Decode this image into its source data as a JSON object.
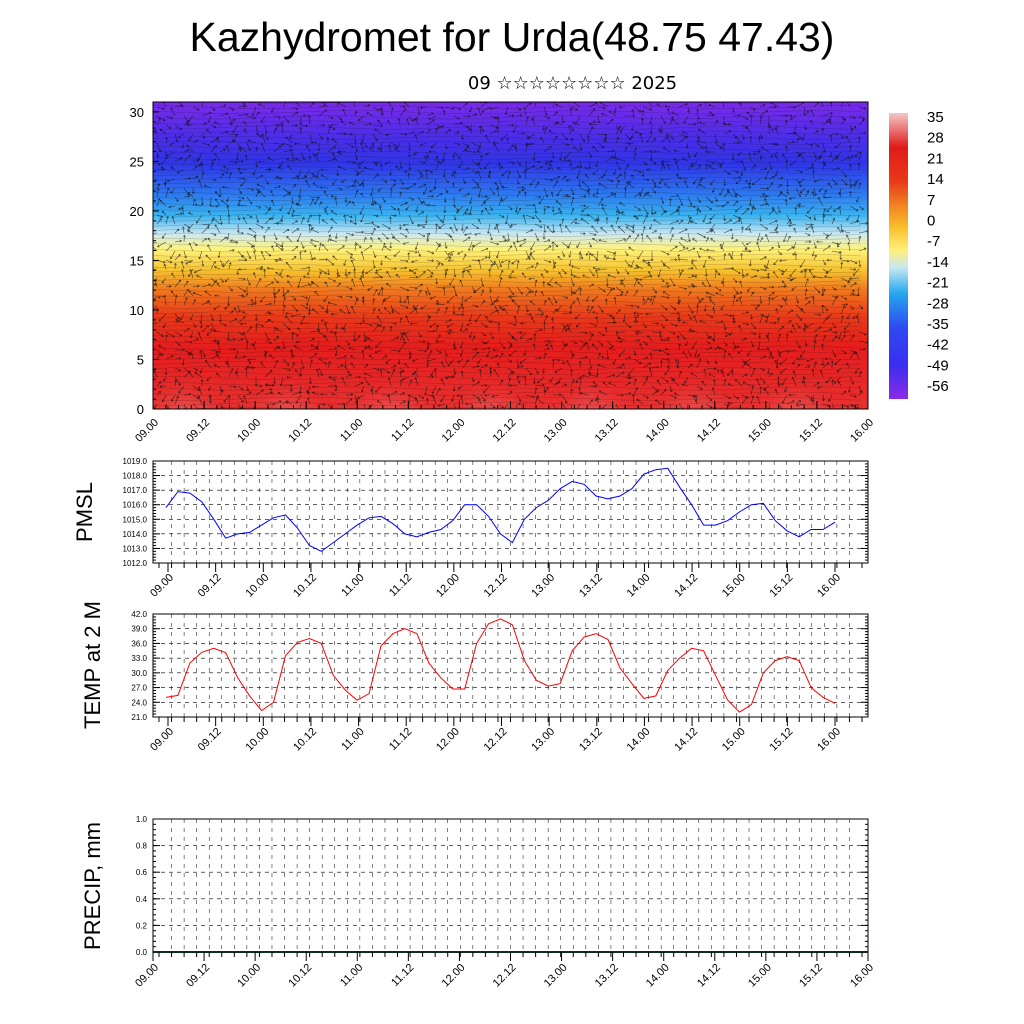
{
  "header": {
    "title": "Kazhydromet for Urda(48.75 47.43)",
    "subtitle": "09 ☆☆☆☆☆☆☆☆ 2025"
  },
  "time_labels": [
    "09.00",
    "09.12",
    "10.00",
    "10.12",
    "11.00",
    "11.12",
    "12.00",
    "12.12",
    "13.00",
    "13.12",
    "14.00",
    "14.12",
    "15.00",
    "15.12",
    "16.00"
  ],
  "chart_data": [
    {
      "type": "heatmap",
      "id": "cross-section",
      "x": [
        "09.00",
        "09.12",
        "10.00",
        "10.12",
        "11.00",
        "11.12",
        "12.00",
        "12.12",
        "13.00",
        "13.12",
        "14.00",
        "14.12",
        "15.00",
        "15.12",
        "16.00"
      ],
      "ylim": [
        0,
        31
      ],
      "yticks": [
        0,
        5,
        10,
        15,
        20,
        25,
        30
      ],
      "colorbar_labels": [
        "35",
        "28",
        "21",
        "14",
        "7",
        "0",
        "-7",
        "-14",
        "-21",
        "-28",
        "-35",
        "-42",
        "-49",
        "-56"
      ],
      "colors": {
        "warm_max": "#f2c8c8",
        "red": "#e21a1a",
        "orange": "#f39a1e",
        "yellow": "#fff07a",
        "light_blue": "#a9dcf2",
        "cyan": "#26a8ef",
        "blue": "#2e3ff0",
        "violet": "#7a2ae8"
      },
      "overlay": "wind-vectors"
    },
    {
      "type": "line",
      "id": "pmsl",
      "ylabel": "PMSL",
      "ylim": [
        1012.0,
        1019.0
      ],
      "yticks": [
        "1012.0",
        "1013.0",
        "1014.0",
        "1015.0",
        "1016.0",
        "1017.0",
        "1018.0",
        "1019.0"
      ],
      "color": "#0000ff",
      "x_hours": [
        0,
        6,
        12,
        18,
        24,
        30,
        36,
        42,
        48,
        54,
        60,
        66,
        72,
        78,
        84,
        90,
        96,
        102,
        108,
        114,
        120,
        126,
        132,
        138,
        144,
        150,
        156,
        162,
        168,
        174,
        180,
        186,
        192,
        198,
        204,
        210,
        216,
        222,
        228,
        234,
        240,
        246,
        252,
        258,
        264,
        270,
        276,
        282,
        288,
        294,
        300,
        306,
        312,
        318,
        324,
        330,
        336
      ],
      "values": [
        1015.8,
        1016.9,
        1016.8,
        1016.2,
        1015.0,
        1013.7,
        1014.0,
        1014.1,
        1014.6,
        1015.1,
        1015.3,
        1014.4,
        1013.2,
        1012.8,
        1013.4,
        1014.0,
        1014.6,
        1015.1,
        1015.2,
        1014.7,
        1014.0,
        1013.8,
        1014.1,
        1014.3,
        1014.9,
        1016.0,
        1016.0,
        1015.2,
        1014.0,
        1013.4,
        1015.0,
        1015.8,
        1016.3,
        1017.1,
        1017.6,
        1017.4,
        1016.6,
        1016.4,
        1016.6,
        1017.1,
        1018.1,
        1018.4,
        1018.5,
        1017.2,
        1016.0,
        1014.6,
        1014.6,
        1014.9,
        1015.5,
        1016.0,
        1016.1,
        1014.9,
        1014.2,
        1013.8,
        1014.3,
        1014.3,
        1014.8
      ]
    },
    {
      "type": "line",
      "id": "temp2m",
      "ylabel": "TEMP at 2 M",
      "ylim": [
        21.0,
        42.0
      ],
      "yticks": [
        "21.0",
        "24.0",
        "27.0",
        "30.0",
        "33.0",
        "36.0",
        "39.0",
        "42.0"
      ],
      "color": "#ff0000",
      "x_hours": [
        0,
        6,
        12,
        18,
        24,
        30,
        36,
        42,
        48,
        54,
        60,
        66,
        72,
        78,
        84,
        90,
        96,
        102,
        108,
        114,
        120,
        126,
        132,
        138,
        144,
        150,
        156,
        162,
        168,
        174,
        180,
        186,
        192,
        198,
        204,
        210,
        216,
        222,
        228,
        234,
        240,
        246,
        252,
        258,
        264,
        270,
        276,
        282,
        288,
        294,
        300,
        306,
        312,
        318,
        324,
        330,
        336
      ],
      "values": [
        25.0,
        25.4,
        32.0,
        34.2,
        35.0,
        34.1,
        29.0,
        25.3,
        22.3,
        24.0,
        33.5,
        36.2,
        37.0,
        36.0,
        29.5,
        26.5,
        24.4,
        25.8,
        35.5,
        38.0,
        39.0,
        38.0,
        32.0,
        29.0,
        26.7,
        26.7,
        36.0,
        40.0,
        41.0,
        39.8,
        32.5,
        28.5,
        27.3,
        27.8,
        34.5,
        37.3,
        38.0,
        36.8,
        31.0,
        27.8,
        24.8,
        25.3,
        30.5,
        33.0,
        35.0,
        34.5,
        29.5,
        24.5,
        22.0,
        23.5,
        30.0,
        32.5,
        33.3,
        32.5,
        27.0,
        25.0,
        23.8
      ]
    },
    {
      "type": "line",
      "id": "precip",
      "ylabel": "PRECIP, mm",
      "ylim": [
        0.0,
        1.0
      ],
      "yticks": [
        "0.0",
        "0.2",
        "0.4",
        "0.6",
        "0.8",
        "1.0"
      ],
      "color": "#000000",
      "values": [
        0
      ]
    }
  ]
}
